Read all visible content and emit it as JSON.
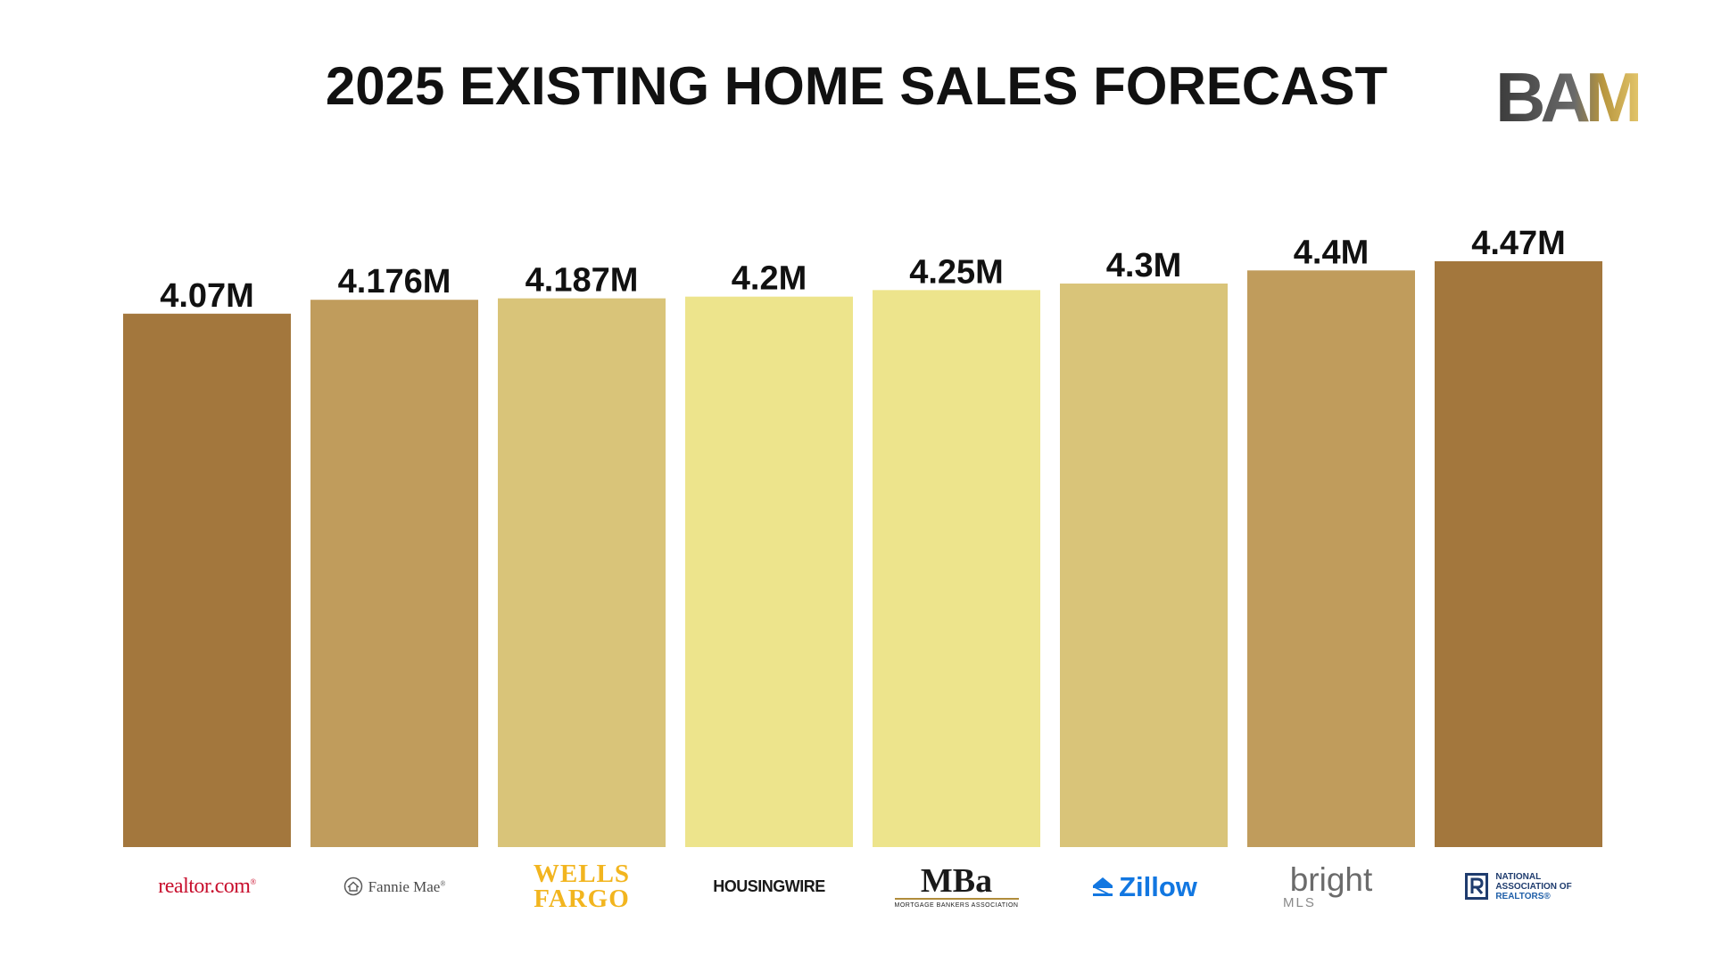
{
  "title": "2025 EXISTING HOME SALES FORECAST",
  "brand": {
    "logo_text": "BAM",
    "icon": "bam-logo"
  },
  "chart_data": {
    "type": "bar",
    "title": "2025 EXISTING HOME SALES FORECAST",
    "xlabel": "",
    "ylabel": "",
    "ylim": [
      0,
      4.47
    ],
    "grid": false,
    "legend": "none",
    "categories": [
      "realtor.com",
      "Fannie Mae",
      "WELLS FARGO",
      "HOUSINGWIRE",
      "MBa",
      "Zillow",
      "bright MLS",
      "NATIONAL ASSOCIATION OF REALTORS"
    ],
    "values": [
      4.07,
      4.176,
      4.187,
      4.2,
      4.25,
      4.3,
      4.4,
      4.47
    ],
    "value_labels": [
      "4.07M",
      "4.176M",
      "4.187M",
      "4.2M",
      "4.25M",
      "4.3M",
      "4.4M",
      "4.47M"
    ],
    "bar_colors": [
      "#a3773d",
      "#c09c5c",
      "#d9c479",
      "#ede48c",
      "#ede48c",
      "#d9c479",
      "#c09c5c",
      "#a3773d"
    ]
  },
  "logos": {
    "realtor": "realtor.com",
    "realtor_mark": "®",
    "fannie": "Fannie Mae",
    "fannie_mark": "®",
    "wells_line1": "WELLS",
    "wells_line2": "FARGO",
    "housingwire": "HOUSINGWIRE",
    "mba": "MBa",
    "mba_sub": "MORTGAGE BANKERS ASSOCIATION",
    "zillow": "Zillow",
    "bright": "bright",
    "bright_sub": "MLS",
    "nar_line1": "NATIONAL",
    "nar_line2": "ASSOCIATION OF",
    "nar_line3": "REALTORS®"
  }
}
